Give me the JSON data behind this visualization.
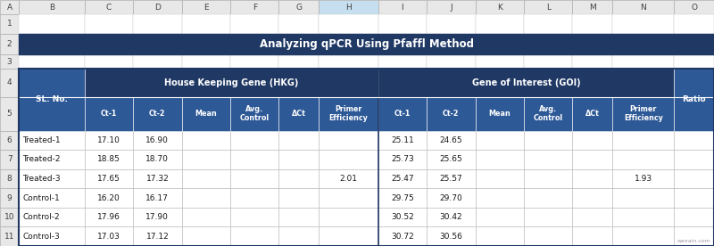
{
  "title": "Analyzing qPCR Using Pfaffl Method",
  "title_bg": "#1f3864",
  "title_color": "#ffffff",
  "header1_text": "House Keeping Gene (HKG)",
  "header2_text": "Gene of Interest (GOI)",
  "header_bg": "#1f3864",
  "header_color": "#ffffff",
  "subheader_bg": "#2e5997",
  "subheader_color": "#ffffff",
  "rows": [
    [
      "Treated-1",
      "17.10",
      "16.90",
      "",
      "",
      "",
      "",
      "25.11",
      "24.65",
      "",
      "",
      "",
      "",
      ""
    ],
    [
      "Treated-2",
      "18.85",
      "18.70",
      "",
      "",
      "",
      "",
      "25.73",
      "25.65",
      "",
      "",
      "",
      "",
      ""
    ],
    [
      "Treated-3",
      "17.65",
      "17.32",
      "",
      "",
      "",
      "2.01",
      "25.47",
      "25.57",
      "",
      "",
      "",
      "1.93",
      ""
    ],
    [
      "Control-1",
      "16.20",
      "16.17",
      "",
      "",
      "",
      "",
      "29.75",
      "29.70",
      "",
      "",
      "",
      "",
      ""
    ],
    [
      "Control-2",
      "17.96",
      "17.90",
      "",
      "",
      "",
      "",
      "30.52",
      "30.42",
      "",
      "",
      "",
      "",
      ""
    ],
    [
      "Control-3",
      "17.03",
      "17.12",
      "",
      "",
      "",
      "",
      "30.72",
      "30.56",
      "",
      "",
      "",
      "",
      ""
    ]
  ],
  "cell_border": "#b0b0b0",
  "outer_border": "#1f3864",
  "watermark": "wexain.com",
  "excel_col_labels": [
    "A",
    "B",
    "C",
    "D",
    "E",
    "F",
    "G",
    "H",
    "I",
    "J",
    "K",
    "L",
    "M",
    "N",
    "O"
  ],
  "excel_bg": "#e8e8e8",
  "excel_selected_bg": "#c5dff0",
  "col_widths_raw": [
    18,
    62,
    46,
    46,
    46,
    46,
    38,
    56,
    46,
    46,
    46,
    46,
    38,
    58,
    38
  ],
  "row_heights_raw": [
    15,
    20,
    22,
    14,
    30,
    35,
    20,
    20,
    20,
    20,
    20,
    20
  ]
}
